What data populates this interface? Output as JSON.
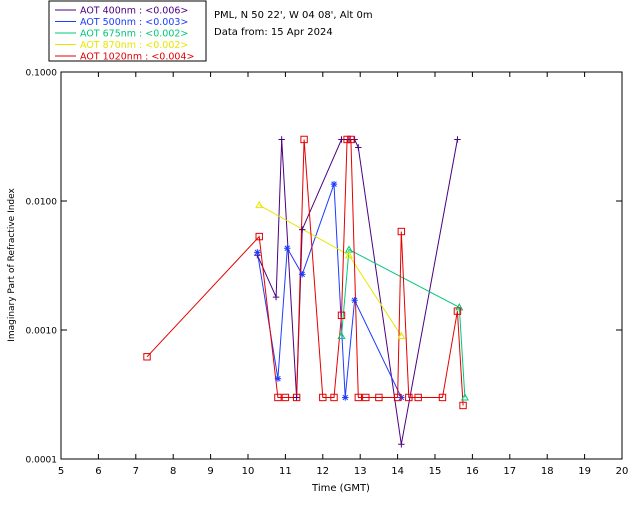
{
  "chart_data": {
    "type": "scatter",
    "title": "",
    "xlabel": "Time (GMT)",
    "ylabel": "Imaginary Part of Refractive Index",
    "xlim": [
      5,
      20
    ],
    "ylim": [
      0.0001,
      0.1
    ],
    "yscale": "log",
    "grid": false,
    "legend_position": "top-left-outside",
    "x_ticks": [
      5,
      6,
      7,
      8,
      9,
      10,
      11,
      12,
      13,
      14,
      15,
      16,
      17,
      18,
      19,
      20
    ],
    "x_tick_labels": [
      "5",
      "6",
      "7",
      "8",
      "9",
      "10",
      "11",
      "12",
      "13",
      "14",
      "15",
      "16",
      "17",
      "18",
      "19",
      "20"
    ],
    "y_ticks": [
      0.0001,
      0.001,
      0.01,
      0.1
    ],
    "y_tick_labels": [
      "0.0001",
      "0.0010",
      "0.0100",
      "0.1000"
    ],
    "info_lines": [
      "PML, N 50 22', W 04 08', Alt 0m",
      "Data from: 15 Apr 2024"
    ],
    "series": [
      {
        "name": "AOT 400nm : <0.006>",
        "color": "#4b0082",
        "marker": "plus",
        "x": [
          10.25,
          10.75,
          10.9,
          11.3,
          11.45,
          12.5,
          12.7,
          12.85,
          12.95,
          14.1,
          15.6
        ],
        "y": [
          0.0038,
          0.0018,
          0.03,
          0.0003,
          0.006,
          0.03,
          0.03,
          0.03,
          0.026,
          0.00013,
          0.03
        ]
      },
      {
        "name": "AOT 500nm : <0.003>",
        "color": "#1e3cff",
        "marker": "asterisk",
        "x": [
          10.25,
          10.8,
          11.05,
          11.45,
          12.3,
          12.6,
          12.85,
          14.1
        ],
        "y": [
          0.004,
          0.00042,
          0.0043,
          0.0027,
          0.0135,
          0.0003,
          0.0017,
          0.0003
        ]
      },
      {
        "name": "AOT 675nm : <0.002>",
        "color": "#00c87a",
        "marker": "triangle",
        "x": [
          12.5,
          12.7,
          15.65,
          15.8
        ],
        "y": [
          0.0009,
          0.0042,
          0.0015,
          0.0003
        ]
      },
      {
        "name": "AOT 870nm : <0.002>",
        "color": "#e6e600",
        "marker": "triangle",
        "x": [
          10.3,
          12.7,
          14.1
        ],
        "y": [
          0.0093,
          0.0038,
          0.0009
        ]
      },
      {
        "name": "AOT 1020nm : <0.004>",
        "color": "#e60000",
        "marker": "square",
        "x": [
          7.3,
          10.3,
          10.8,
          11.0,
          11.3,
          11.5,
          12.0,
          12.3,
          12.5,
          12.65,
          12.75,
          12.95,
          13.15,
          13.5,
          14.0,
          14.1,
          14.3,
          14.55,
          15.2,
          15.6,
          15.75
        ],
        "y": [
          0.00062,
          0.0053,
          0.0003,
          0.0003,
          0.0003,
          0.03,
          0.0003,
          0.0003,
          0.0013,
          0.03,
          0.03,
          0.0003,
          0.0003,
          0.0003,
          0.0003,
          0.0058,
          0.0003,
          0.0003,
          0.0003,
          0.0014,
          0.00026
        ]
      }
    ]
  }
}
